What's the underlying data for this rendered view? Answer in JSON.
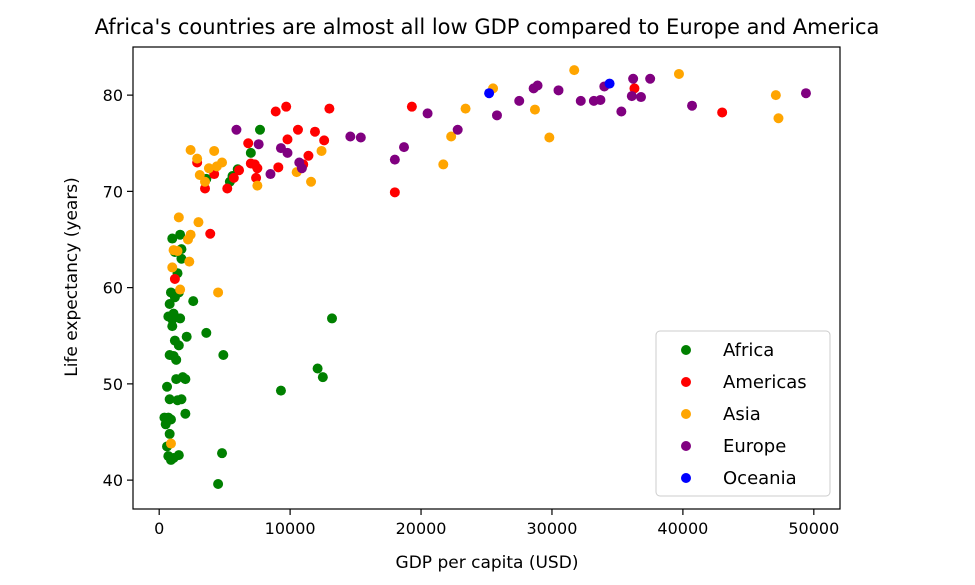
{
  "chart_data": {
    "type": "scatter",
    "title": "Africa's countries are almost all low GDP compared to Europe and America",
    "xlabel": "GDP per capita (USD)",
    "ylabel": "Life expectancy (years)",
    "xlim": [
      -2000,
      52000
    ],
    "ylim": [
      37,
      85
    ],
    "xticks": [
      0,
      10000,
      20000,
      30000,
      40000,
      50000
    ],
    "yticks": [
      40,
      50,
      60,
      70,
      80
    ],
    "grid": false,
    "legend_position": "lower right",
    "series": [
      {
        "name": "Africa",
        "color": "#008000",
        "points": [
          [
            400,
            46.5
          ],
          [
            500,
            45.8
          ],
          [
            600,
            43.5
          ],
          [
            700,
            42.5
          ],
          [
            800,
            44.8
          ],
          [
            900,
            42.1
          ],
          [
            600,
            49.7
          ],
          [
            700,
            57.0
          ],
          [
            800,
            58.3
          ],
          [
            900,
            59.5
          ],
          [
            1000,
            56.7
          ],
          [
            1000,
            56.0
          ],
          [
            1100,
            52.9
          ],
          [
            1200,
            54.5
          ],
          [
            1300,
            52.5
          ],
          [
            1300,
            50.5
          ],
          [
            1400,
            48.3
          ],
          [
            1500,
            54.0
          ],
          [
            800,
            53.0
          ],
          [
            800,
            48.4
          ],
          [
            1000,
            65.1
          ],
          [
            1200,
            63.7
          ],
          [
            1400,
            61.5
          ],
          [
            1500,
            59.5
          ],
          [
            1600,
            65.5
          ],
          [
            1700,
            64.0
          ],
          [
            1700,
            63.0
          ],
          [
            1600,
            56.8
          ],
          [
            1700,
            48.4
          ],
          [
            1800,
            50.7
          ],
          [
            2000,
            50.5
          ],
          [
            2000,
            46.9
          ],
          [
            2100,
            54.9
          ],
          [
            1500,
            42.6
          ],
          [
            1100,
            42.3
          ],
          [
            2600,
            58.6
          ],
          [
            3600,
            55.3
          ],
          [
            4500,
            39.6
          ],
          [
            4800,
            42.8
          ],
          [
            4900,
            53.0
          ],
          [
            9300,
            49.3
          ],
          [
            12100,
            51.6
          ],
          [
            12500,
            50.7
          ],
          [
            13200,
            56.8
          ],
          [
            3600,
            71.3
          ],
          [
            5400,
            71.0
          ],
          [
            5600,
            71.6
          ],
          [
            6000,
            72.3
          ],
          [
            7000,
            74.0
          ],
          [
            7700,
            76.4
          ],
          [
            900,
            46.3
          ],
          [
            700,
            46.5
          ],
          [
            1100,
            57.3
          ],
          [
            1200,
            59.0
          ]
        ]
      },
      {
        "name": "Americas",
        "color": "#ff0000",
        "points": [
          [
            1200,
            60.9
          ],
          [
            2900,
            73.0
          ],
          [
            3500,
            70.3
          ],
          [
            3900,
            65.6
          ],
          [
            4200,
            71.8
          ],
          [
            5200,
            70.3
          ],
          [
            5700,
            71.4
          ],
          [
            6100,
            72.2
          ],
          [
            6800,
            75.0
          ],
          [
            7000,
            72.9
          ],
          [
            7300,
            72.8
          ],
          [
            7500,
            72.4
          ],
          [
            7400,
            71.4
          ],
          [
            8900,
            78.3
          ],
          [
            9100,
            72.5
          ],
          [
            9700,
            78.8
          ],
          [
            9800,
            75.4
          ],
          [
            10600,
            76.4
          ],
          [
            11000,
            72.8
          ],
          [
            11400,
            73.7
          ],
          [
            11900,
            76.2
          ],
          [
            12600,
            75.3
          ],
          [
            13000,
            78.6
          ],
          [
            18000,
            69.9
          ],
          [
            19300,
            78.8
          ],
          [
            36300,
            80.7
          ],
          [
            43000,
            78.2
          ]
        ]
      },
      {
        "name": "Asia",
        "color": "#ffa500",
        "points": [
          [
            900,
            43.8
          ],
          [
            1000,
            62.1
          ],
          [
            1100,
            63.9
          ],
          [
            1400,
            63.8
          ],
          [
            1500,
            67.3
          ],
          [
            1600,
            59.8
          ],
          [
            2200,
            65.0
          ],
          [
            2300,
            62.7
          ],
          [
            2400,
            65.5
          ],
          [
            2400,
            74.3
          ],
          [
            2900,
            73.4
          ],
          [
            3000,
            66.8
          ],
          [
            3100,
            71.7
          ],
          [
            3500,
            71.0
          ],
          [
            3800,
            72.4
          ],
          [
            4200,
            74.2
          ],
          [
            4400,
            72.6
          ],
          [
            4500,
            59.5
          ],
          [
            4800,
            73.0
          ],
          [
            7500,
            70.6
          ],
          [
            10500,
            72.0
          ],
          [
            11600,
            71.0
          ],
          [
            12400,
            74.2
          ],
          [
            21700,
            72.8
          ],
          [
            22300,
            75.7
          ],
          [
            23400,
            78.6
          ],
          [
            25500,
            80.7
          ],
          [
            28700,
            78.5
          ],
          [
            29800,
            75.6
          ],
          [
            31700,
            82.6
          ],
          [
            39700,
            82.2
          ],
          [
            47100,
            80.0
          ],
          [
            47300,
            77.6
          ]
        ]
      },
      {
        "name": "Europe",
        "color": "#800080",
        "points": [
          [
            5900,
            76.4
          ],
          [
            7600,
            74.9
          ],
          [
            8500,
            71.8
          ],
          [
            9300,
            74.5
          ],
          [
            9800,
            74.0
          ],
          [
            10700,
            73.0
          ],
          [
            10900,
            72.4
          ],
          [
            14600,
            75.7
          ],
          [
            15400,
            75.6
          ],
          [
            18000,
            73.3
          ],
          [
            18700,
            74.6
          ],
          [
            20500,
            78.1
          ],
          [
            22800,
            76.4
          ],
          [
            25800,
            77.9
          ],
          [
            27500,
            79.4
          ],
          [
            28600,
            80.7
          ],
          [
            28900,
            81.0
          ],
          [
            30500,
            80.5
          ],
          [
            32200,
            79.4
          ],
          [
            33200,
            79.4
          ],
          [
            33700,
            79.5
          ],
          [
            34000,
            80.9
          ],
          [
            35300,
            78.3
          ],
          [
            36100,
            79.9
          ],
          [
            36200,
            81.7
          ],
          [
            36800,
            79.8
          ],
          [
            37500,
            81.7
          ],
          [
            40700,
            78.9
          ],
          [
            49400,
            80.2
          ]
        ]
      },
      {
        "name": "Oceania",
        "color": "#0000ff",
        "points": [
          [
            25200,
            80.2
          ],
          [
            34400,
            81.2
          ]
        ]
      }
    ]
  }
}
